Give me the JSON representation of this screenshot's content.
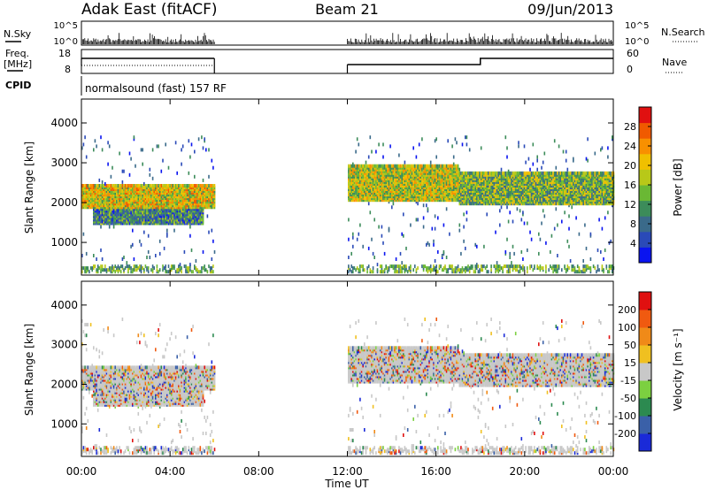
{
  "header": {
    "station": "Adak East (fitACF)",
    "beam": "Beam 21",
    "date": "09/Jun/2013"
  },
  "strip_panels": {
    "nsky_label": "N.Sky",
    "nsearch_label": "N.Search",
    "nsky_ticks": [
      "10^5",
      "10^0"
    ],
    "nsearch_ticks": [
      "10^5",
      "10^0"
    ],
    "freq_label_top": "Freq.",
    "freq_label_unit": "[MHz]",
    "freq_ticks": [
      "18",
      "8"
    ],
    "nave_label": "Nave",
    "nave_ticks": [
      "60",
      "0"
    ],
    "cpid_label": "CPID",
    "cpid_value": "normalsound (fast) 157 RF"
  },
  "chart_data": [
    {
      "type": "heatmap",
      "name": "power",
      "ylabel": "Slant Range [km]",
      "xlabel": "Time UT",
      "xlim_hours": [
        0,
        24
      ],
      "ylim": [
        180,
        4600
      ],
      "y_ticks": [
        1000,
        2000,
        3000,
        4000
      ],
      "colorbar": {
        "label": "Power [dB]",
        "ticks": [
          4,
          8,
          12,
          16,
          20,
          24,
          28
        ],
        "range": [
          0,
          32
        ],
        "colors": [
          "#0a14f0",
          "#2a4ab8",
          "#3a6a8a",
          "#3c8c5a",
          "#6ab834",
          "#b8c818",
          "#f0c000",
          "#f89000",
          "#f05a00",
          "#e01010"
        ]
      },
      "data_gaps_hours": [
        [
          6,
          12
        ]
      ],
      "bands": [
        {
          "t0": 0.0,
          "t1": 6.0,
          "r0": 1800,
          "r1": 2400,
          "level": 0.6
        },
        {
          "t0": 0.5,
          "t1": 5.5,
          "r0": 1400,
          "r1": 1800,
          "level": 0.3
        },
        {
          "t0": 12.0,
          "t1": 17.0,
          "r0": 2000,
          "r1": 2900,
          "level": 0.55
        },
        {
          "t0": 17.0,
          "t1": 24.0,
          "r0": 1900,
          "r1": 2700,
          "level": 0.45
        }
      ]
    },
    {
      "type": "heatmap",
      "name": "velocity",
      "ylabel": "Slant Range [km]",
      "xlabel": "Time UT",
      "xlim_hours": [
        0,
        24
      ],
      "ylim": [
        180,
        4600
      ],
      "y_ticks": [
        1000,
        2000,
        3000,
        4000
      ],
      "colorbar": {
        "label": "Velocity [m s⁻¹]",
        "ticks": [
          200,
          100,
          50,
          15,
          -15,
          -50,
          -100,
          -200
        ],
        "range": [
          -250,
          250
        ],
        "colors": [
          "#1a2ad8",
          "#3a60a8",
          "#2c8a50",
          "#7cd040",
          "#c8c8c8",
          "#f0c020",
          "#f08a18",
          "#f05a10",
          "#e01010"
        ]
      },
      "data_gaps_hours": [
        [
          6,
          12
        ]
      ]
    }
  ],
  "x_axis": {
    "tick_labels": [
      "00:00",
      "04:00",
      "08:00",
      "12:00",
      "16:00",
      "20:00",
      "00:00"
    ],
    "tick_hours": [
      0,
      4,
      8,
      12,
      16,
      20,
      24
    ],
    "label": "Time UT"
  }
}
